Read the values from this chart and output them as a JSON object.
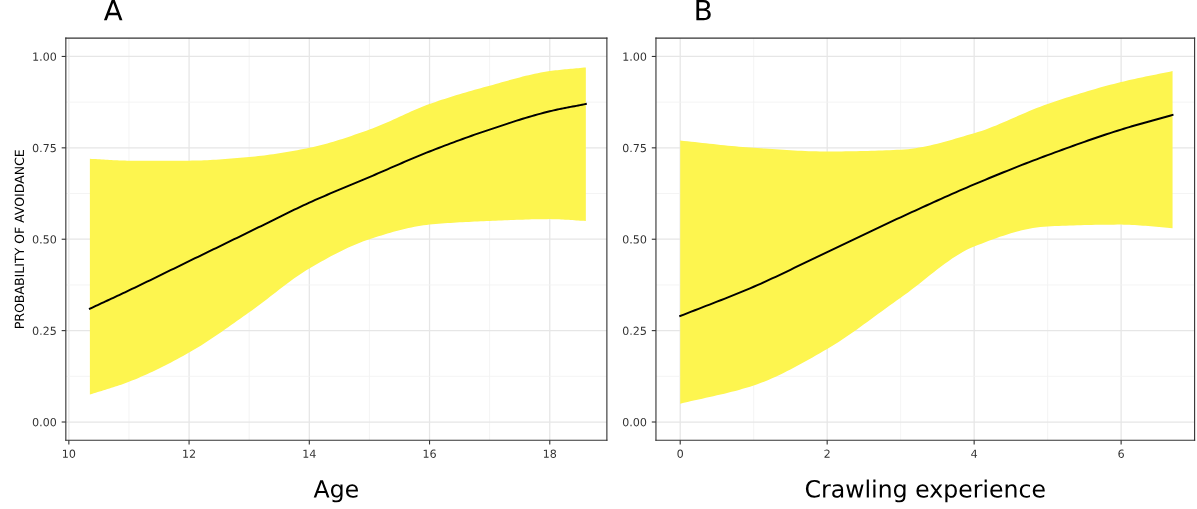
{
  "chart_data": [
    {
      "type": "line",
      "title": "A",
      "xlabel": "Age",
      "ylabel": "PROBABILITY OF AVOIDANCE",
      "xlim": [
        9.95,
        18.95
      ],
      "xticks": [
        10,
        12,
        14,
        16,
        18
      ],
      "ylim": [
        -0.05,
        1.05
      ],
      "yticks": [
        {
          "value": 0,
          "label": "0.00"
        },
        {
          "value": 0.25,
          "label": "0.25"
        },
        {
          "value": 0.5,
          "label": "0.50"
        },
        {
          "value": 0.75,
          "label": "0.75"
        },
        {
          "value": 1,
          "label": "1.00"
        }
      ],
      "grid": true,
      "marker": "none",
      "line_style": "solid",
      "series": [
        {
          "color": "#000000",
          "x": [
            10.35,
            11,
            12,
            13,
            14,
            15,
            16,
            17,
            18,
            18.6
          ],
          "values": [
            0.31,
            0.36,
            0.44,
            0.52,
            0.6,
            0.67,
            0.74,
            0.8,
            0.85,
            0.87
          ],
          "upper": [
            0.72,
            0.715,
            0.715,
            0.725,
            0.75,
            0.8,
            0.87,
            0.92,
            0.96,
            0.97
          ],
          "lower": [
            0.075,
            0.11,
            0.19,
            0.3,
            0.42,
            0.5,
            0.54,
            0.55,
            0.555,
            0.55
          ]
        }
      ]
    },
    {
      "type": "line",
      "title": "B",
      "xlabel": "Crawling experience",
      "xlim": [
        -0.33,
        7.0
      ],
      "xticks": [
        0,
        2,
        4,
        6
      ],
      "ylim": [
        -0.05,
        1.05
      ],
      "yticks": [
        {
          "value": 0,
          "label": "0.00"
        },
        {
          "value": 0.25,
          "label": "0.25"
        },
        {
          "value": 0.5,
          "label": "0.50"
        },
        {
          "value": 0.75,
          "label": "0.75"
        },
        {
          "value": 1,
          "label": "1.00"
        }
      ],
      "grid": true,
      "marker": "none",
      "line_style": "solid",
      "series": [
        {
          "color": "#000000",
          "x": [
            0,
            1,
            2,
            3,
            4,
            5,
            6,
            6.7
          ],
          "values": [
            0.29,
            0.37,
            0.465,
            0.56,
            0.65,
            0.73,
            0.8,
            0.84
          ],
          "upper": [
            0.77,
            0.75,
            0.74,
            0.745,
            0.79,
            0.87,
            0.93,
            0.96
          ],
          "lower": [
            0.05,
            0.1,
            0.2,
            0.34,
            0.48,
            0.535,
            0.54,
            0.53
          ]
        }
      ]
    }
  ]
}
